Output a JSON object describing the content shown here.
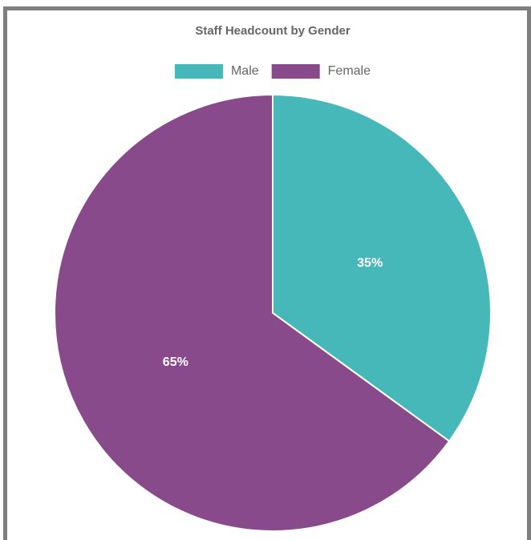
{
  "chart_data": {
    "type": "pie",
    "title": "Staff Headcount by Gender",
    "categories": [
      "Male",
      "Female"
    ],
    "values": [
      35,
      65
    ],
    "value_labels": [
      "35%",
      "65%"
    ],
    "colors": [
      "#47b8b9",
      "#884a8a"
    ],
    "legend": "top"
  }
}
